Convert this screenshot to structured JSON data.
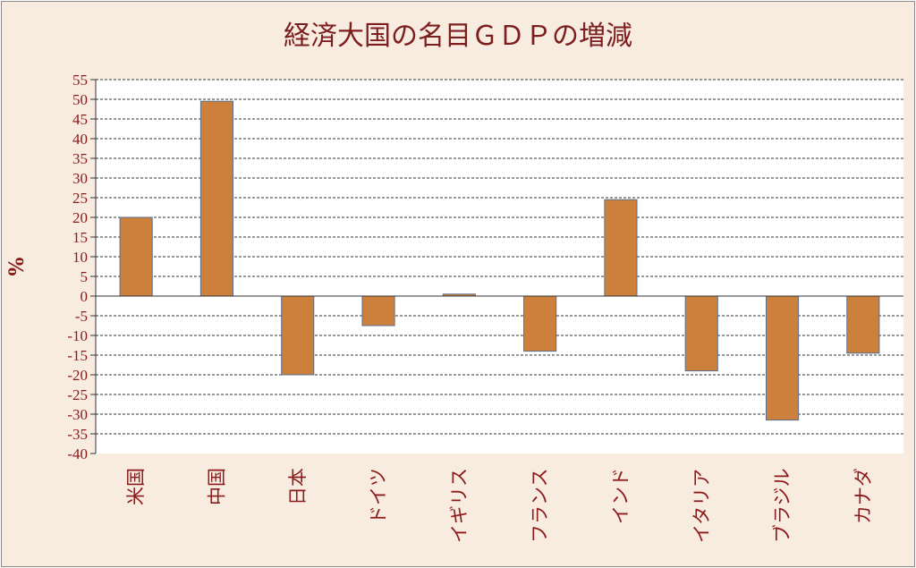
{
  "chart_data": {
    "type": "bar",
    "title": "経済大国の名目ＧＤＰの増減",
    "ylabel": "%",
    "xlabel": "",
    "categories": [
      "米国",
      "中国",
      "日本",
      "ドイツ",
      "イギリス",
      "フランス",
      "インド",
      "イタリア",
      "ブラジル",
      "カナダ"
    ],
    "values": [
      20,
      49.5,
      -20,
      -7.5,
      0.5,
      -14,
      24.5,
      -19,
      -31.5,
      -14.5
    ],
    "ylim": [
      -40,
      55
    ],
    "ytick_step": 5,
    "grid": true,
    "legend": "none",
    "colors": {
      "bar_fill": "#cd7f3c",
      "bar_stroke": "#5a6e8c",
      "background": "#f8ece1",
      "plot_background": "#ffffff",
      "text": "#8b1a1a",
      "title": "#7b1e1e"
    }
  }
}
